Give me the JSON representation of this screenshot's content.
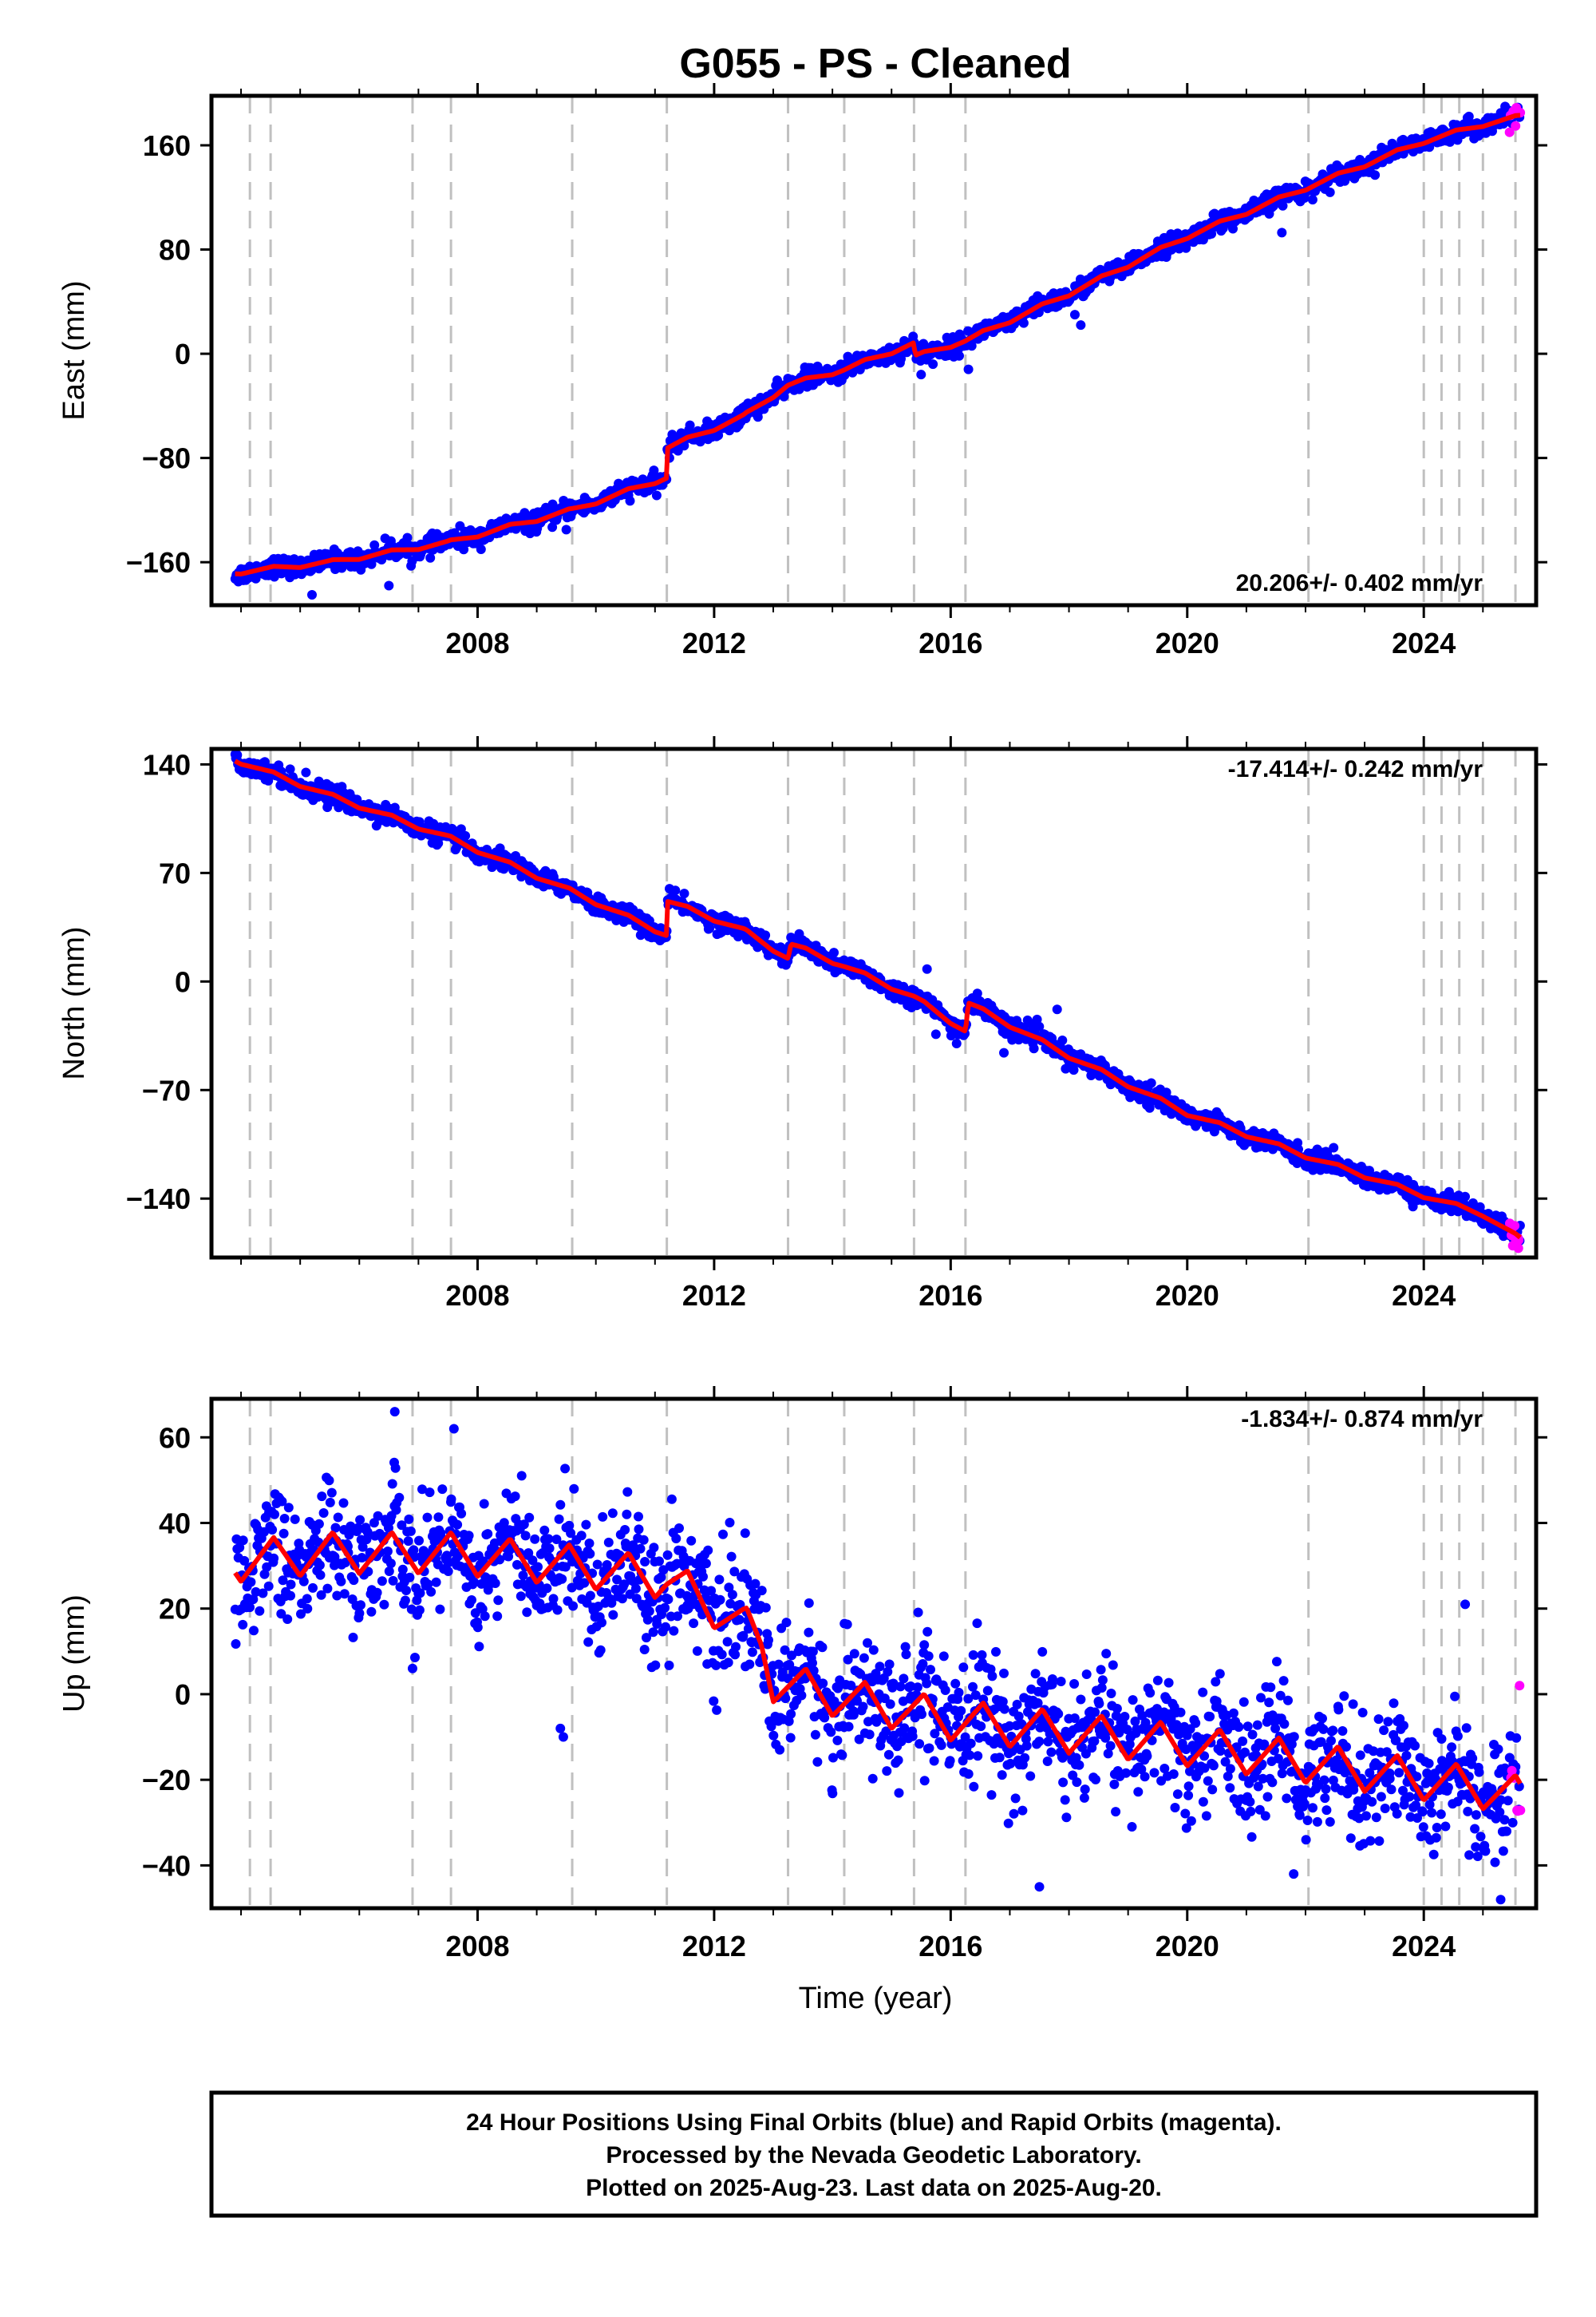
{
  "colors": {
    "final_orbits": "#0000ff",
    "rapid_orbits": "#ff00ff",
    "model": "#ff0000",
    "event_lines": "#c0c0c0"
  },
  "footer": {
    "line1": "24 Hour Positions Using Final Orbits (blue) and Rapid Orbits (magenta).",
    "line2": "Processed by the Nevada Geodetic Laboratory.",
    "line3": "Plotted on 2025-Aug-23. Last data on 2025-Aug-20."
  },
  "chart_data": {
    "type": "scatter",
    "title": "G055  - PS - Cleaned",
    "xlabel": "Time (year)",
    "xlim": [
      2003.5,
      2025.9
    ],
    "x_ticks": [
      2008,
      2012,
      2016,
      2020,
      2024
    ],
    "event_lines": [
      2004.15,
      2004.5,
      2006.9,
      2007.55,
      2009.6,
      2011.2,
      2013.25,
      2014.2,
      2015.38,
      2016.25,
      2022.05,
      2024.0,
      2024.3,
      2024.6,
      2025.0,
      2025.55
    ],
    "data_start": 2003.9,
    "data_end": 2025.63,
    "rapid_start": 2025.45,
    "panels": [
      {
        "name": "east",
        "ylabel": "East (mm)",
        "ylim": [
          -193,
          198
        ],
        "y_ticks": [
          -160,
          -80,
          0,
          80,
          160
        ],
        "rate_label": "20.206+/- 0.402 mm/yr",
        "model_knots": [
          [
            2003.9,
            -168
          ],
          [
            2005.5,
            -160
          ],
          [
            2007.5,
            -145
          ],
          [
            2009.6,
            -120
          ],
          [
            2011.2,
            -95
          ],
          [
            2011.21,
            -72
          ],
          [
            2012.5,
            -48
          ],
          [
            2013.25,
            -24
          ],
          [
            2014.2,
            -12
          ],
          [
            2015.38,
            8
          ],
          [
            2015.4,
            -2
          ],
          [
            2016.25,
            10
          ],
          [
            2018.0,
            46
          ],
          [
            2020.0,
            90
          ],
          [
            2022.05,
            128
          ],
          [
            2024.0,
            163
          ],
          [
            2025.0,
            176
          ],
          [
            2025.63,
            182
          ]
        ],
        "seasonal_amp": 2,
        "scatter_noise": 3.5,
        "scatter_outliers": [
          [
            2005.2,
            -185
          ],
          [
            2006.5,
            -178
          ],
          [
            2009.5,
            -135
          ],
          [
            2015.5,
            -16
          ],
          [
            2015.7,
            -8
          ],
          [
            2016.3,
            -12
          ],
          [
            2018.2,
            22
          ],
          [
            2018.1,
            30
          ],
          [
            2020.6,
            108
          ],
          [
            2021.6,
            93
          ],
          [
            2025.45,
            170
          ]
        ]
      },
      {
        "name": "north",
        "ylabel": "North (mm)",
        "ylim": [
          -178,
          150
        ],
        "y_ticks": [
          -140,
          -70,
          0,
          70,
          140
        ],
        "rate_label": "-17.414+/- 0.242 mm/yr",
        "model_knots": [
          [
            2003.9,
            143
          ],
          [
            2005.5,
            120
          ],
          [
            2007.5,
            93
          ],
          [
            2009.6,
            58
          ],
          [
            2011.2,
            30
          ],
          [
            2011.21,
            52
          ],
          [
            2012.5,
            33
          ],
          [
            2013.25,
            15
          ],
          [
            2013.3,
            24
          ],
          [
            2014.2,
            10
          ],
          [
            2015.38,
            -10
          ],
          [
            2016.25,
            -32
          ],
          [
            2016.3,
            -14
          ],
          [
            2018.0,
            -48
          ],
          [
            2020.0,
            -85
          ],
          [
            2022.05,
            -113
          ],
          [
            2024.0,
            -138
          ],
          [
            2025.0,
            -150
          ],
          [
            2025.63,
            -166
          ]
        ],
        "seasonal_amp": 1.8,
        "scatter_noise": 3,
        "scatter_outliers": [
          [
            2015.6,
            8
          ],
          [
            2015.75,
            -34
          ],
          [
            2016.1,
            -40
          ],
          [
            2016.9,
            -46
          ],
          [
            2017.3,
            -25
          ],
          [
            2017.8,
            -18
          ],
          [
            2018.1,
            -50
          ],
          [
            2025.6,
            -172
          ]
        ]
      },
      {
        "name": "up",
        "ylabel": "Up (mm)",
        "ylim": [
          -50,
          69
        ],
        "y_ticks": [
          -40,
          -20,
          0,
          20,
          40,
          60
        ],
        "rate_label": "-1.834+/- 0.874 mm/yr",
        "model_knots": [
          [
            2003.9,
            31
          ],
          [
            2005.5,
            33
          ],
          [
            2007.5,
            33
          ],
          [
            2009.6,
            30
          ],
          [
            2011.2,
            27
          ],
          [
            2012.5,
            16
          ],
          [
            2012.8,
            12
          ],
          [
            2013.0,
            3
          ],
          [
            2014.2,
            -1
          ],
          [
            2016.0,
            -6
          ],
          [
            2020.0,
            -12
          ],
          [
            2022.05,
            -16
          ],
          [
            2024.0,
            -20
          ],
          [
            2025.0,
            -22
          ],
          [
            2025.63,
            -24
          ]
        ],
        "seasonal_amp": 6,
        "scatter_noise": 7,
        "scatter_outliers": [
          [
            2006.6,
            66
          ],
          [
            2007.6,
            62
          ],
          [
            2009.4,
            -8
          ],
          [
            2009.45,
            -10
          ],
          [
            2006.9,
            6
          ],
          [
            2017.5,
            -45
          ],
          [
            2024.7,
            21
          ],
          [
            2025.62,
            2
          ],
          [
            2021.8,
            -42
          ],
          [
            2025.3,
            -48
          ]
        ]
      }
    ]
  }
}
